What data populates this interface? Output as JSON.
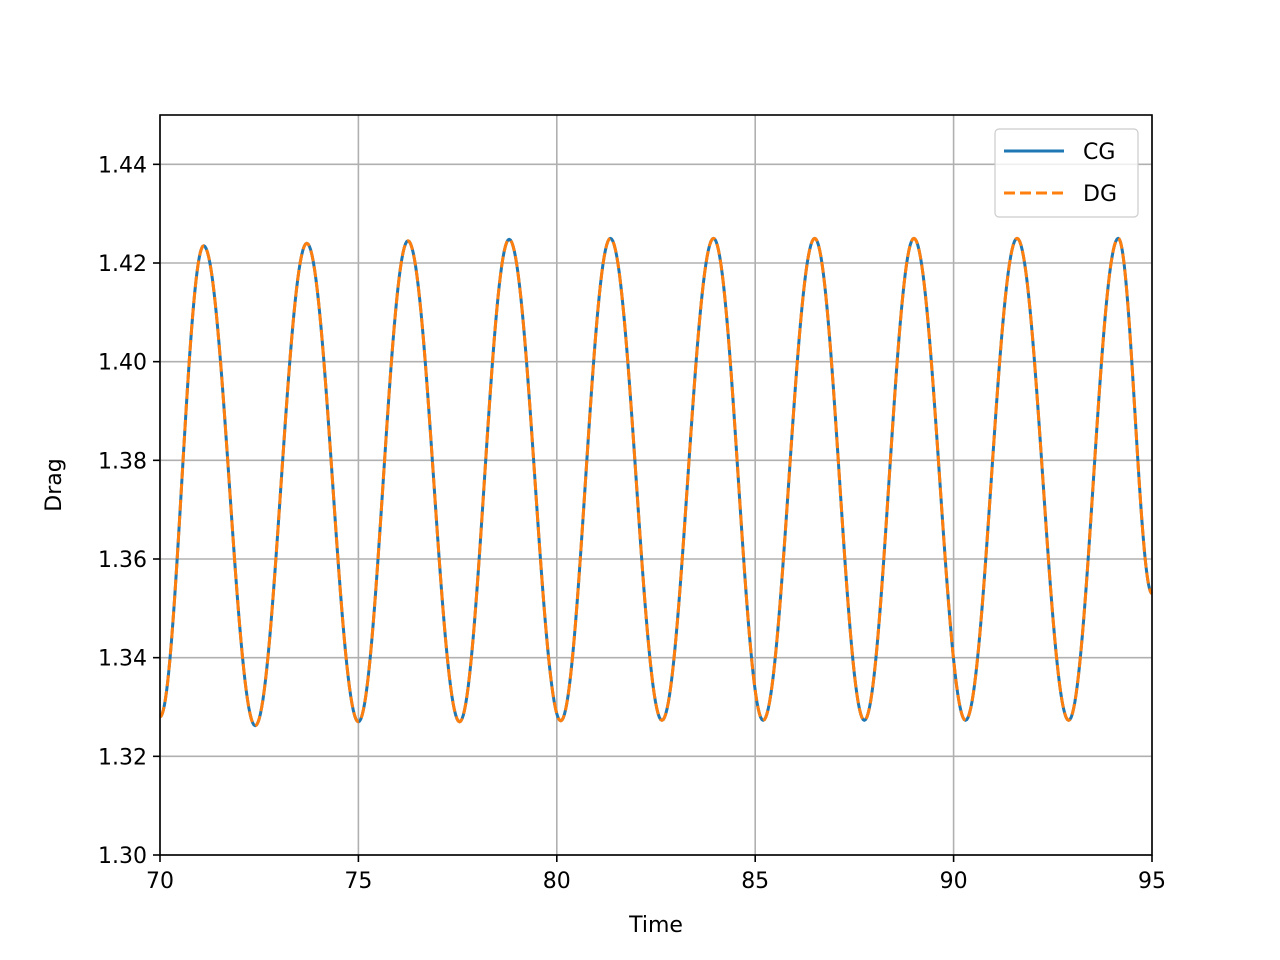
{
  "chart_data": {
    "type": "line",
    "title": "",
    "xlabel": "Time",
    "ylabel": "Drag",
    "xlim": [
      70,
      95
    ],
    "ylim": [
      1.3,
      1.45
    ],
    "xticks": [
      70,
      75,
      80,
      85,
      90,
      95
    ],
    "xtick_labels": [
      "70",
      "75",
      "80",
      "85",
      "90",
      "95"
    ],
    "yticks": [
      1.3,
      1.32,
      1.34,
      1.36,
      1.38,
      1.4,
      1.42,
      1.44
    ],
    "ytick_labels": [
      "1.30",
      "1.32",
      "1.34",
      "1.36",
      "1.38",
      "1.40",
      "1.42",
      "1.44"
    ],
    "grid": true,
    "legend_position": "top-right",
    "series": [
      {
        "name": "CG",
        "color": "#1f77b4",
        "style": "solid",
        "x": [
          70.0,
          71.1,
          72.4,
          73.7,
          75.0,
          76.25,
          77.55,
          78.8,
          80.1,
          81.35,
          82.65,
          83.95,
          85.2,
          86.5,
          87.75,
          89.0,
          90.3,
          91.6,
          92.9,
          94.15,
          95.0
        ],
        "y": [
          1.328,
          1.4235,
          1.3262,
          1.424,
          1.327,
          1.4245,
          1.327,
          1.4248,
          1.3272,
          1.425,
          1.3273,
          1.425,
          1.3273,
          1.425,
          1.3273,
          1.425,
          1.3273,
          1.425,
          1.3273,
          1.425,
          1.353
        ]
      },
      {
        "name": "DG",
        "color": "#ff7f0e",
        "style": "dashed",
        "x": [
          70.0,
          71.1,
          72.4,
          73.7,
          75.0,
          76.25,
          77.55,
          78.8,
          80.1,
          81.35,
          82.65,
          83.95,
          85.2,
          86.5,
          87.75,
          89.0,
          90.3,
          91.6,
          92.9,
          94.15,
          95.0
        ],
        "y": [
          1.328,
          1.4235,
          1.3262,
          1.424,
          1.327,
          1.4245,
          1.327,
          1.4248,
          1.3272,
          1.425,
          1.3273,
          1.425,
          1.3273,
          1.425,
          1.3273,
          1.425,
          1.3273,
          1.425,
          1.3273,
          1.425,
          1.353
        ]
      }
    ]
  }
}
